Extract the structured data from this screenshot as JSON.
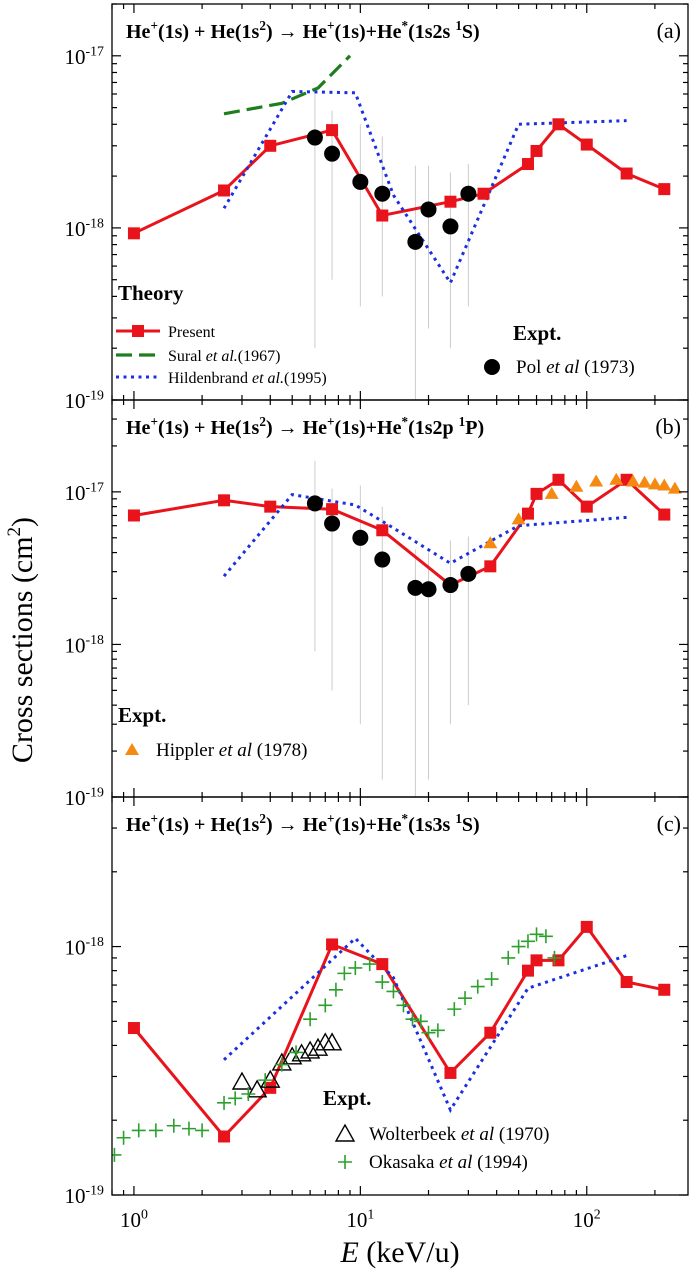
{
  "figure": {
    "ylabel": "Cross sections (cm",
    "ylabel_sup": "2",
    "ylabel_end": ")",
    "xlabel_italic": "E",
    "xlabel_rest": " (keV/u)"
  },
  "chart_data": [
    {
      "type": "line",
      "panel_label": "(a)",
      "title_parts": [
        "He",
        "+",
        "(1s) + He(1s",
        "2",
        ") → He",
        "+",
        "(1s)+He",
        "*",
        "(1s2s ",
        "1",
        "S)"
      ],
      "xscale": "log",
      "yscale": "log",
      "xlim": [
        0.8,
        280
      ],
      "ylim": [
        1e-19,
        2e-17
      ],
      "y_ticks": [
        {
          "v": 1e-19,
          "m": "10",
          "e": "-19"
        },
        {
          "v": 1e-18,
          "m": "10",
          "e": "-18"
        },
        {
          "v": 1e-17,
          "m": "10",
          "e": "-17"
        }
      ],
      "x_ticks": [],
      "theory_heading": "Theory",
      "expt_heading": "Expt.",
      "series": [
        {
          "name": "Present",
          "style": "line-square",
          "color": "#e8131b",
          "x": [
            1,
            2.5,
            4,
            7.5,
            12.5,
            25,
            35,
            55,
            60,
            75,
            100,
            150,
            220
          ],
          "y": [
            9.3e-19,
            1.65e-18,
            3e-18,
            3.7e-18,
            1.18e-18,
            1.42e-18,
            1.58e-18,
            2.35e-18,
            2.8e-18,
            4e-18,
            3.05e-18,
            2.07e-18,
            1.68e-18
          ]
        },
        {
          "name_parts": [
            "Sural ",
            "et al.",
            "(1967)"
          ],
          "style": "dashed",
          "color": "#1e7d1e",
          "x": [
            2.5,
            4.5,
            6.5,
            9
          ],
          "y": [
            4.6e-18,
            5.3e-18,
            6.5e-18,
            1e-17
          ]
        },
        {
          "name_parts": [
            "Hildenbrand ",
            "et al.",
            "(1995)"
          ],
          "style": "dotted",
          "color": "#1a2fe0",
          "x": [
            2.5,
            5,
            9.5,
            14,
            25,
            50,
            150
          ],
          "y": [
            1.3e-18,
            6.2e-18,
            6.1e-18,
            1.55e-18,
            4.8e-19,
            4e-18,
            4.2e-18
          ]
        },
        {
          "name_parts": [
            "Pol ",
            "et al",
            " (1973)"
          ],
          "style": "circle",
          "color": "#000000",
          "x": [
            6.3,
            7.5,
            10,
            12.5,
            17.5,
            20,
            25,
            30
          ],
          "y": [
            3.35e-18,
            2.7e-18,
            1.85e-18,
            1.58e-18,
            8.3e-19,
            1.28e-18,
            1.02e-18,
            1.58e-18
          ],
          "yerr_low": [
            2e-19,
            5e-19,
            3.5e-19,
            4e-19,
            1e-19,
            2.6e-19,
            2e-19,
            3.5e-19
          ],
          "yerr_high": [
            6e-18,
            4.8e-18,
            4e-18,
            3.4e-18,
            2.3e-18,
            2.3e-18,
            2.1e-18,
            2.35e-18
          ]
        }
      ]
    },
    {
      "type": "line",
      "panel_label": "(b)",
      "title_parts": [
        "He",
        "+",
        "(1s) + He(1s",
        "2",
        ") → He",
        "+",
        "(1s)+He",
        "*",
        "(1s2p ",
        "1",
        "P)"
      ],
      "xscale": "log",
      "yscale": "log",
      "xlim": [
        0.8,
        280
      ],
      "ylim": [
        1e-19,
        4e-17
      ],
      "y_ticks": [
        {
          "v": 1e-19,
          "m": "10",
          "e": "-19"
        },
        {
          "v": 1e-18,
          "m": "10",
          "e": "-18"
        },
        {
          "v": 1e-17,
          "m": "10",
          "e": "-17"
        }
      ],
      "x_ticks": [],
      "expt_heading": "Expt.",
      "series": [
        {
          "name": "Present",
          "style": "line-square",
          "color": "#e8131b",
          "x": [
            1,
            2.5,
            4,
            7.5,
            12.5,
            25,
            37.5,
            55,
            60,
            75,
            100,
            150,
            220
          ],
          "y": [
            7e-18,
            8.8e-18,
            8e-18,
            7.7e-18,
            5.6e-18,
            2.45e-18,
            3.25e-18,
            7.2e-18,
            9.7e-18,
            1.2e-17,
            8e-18,
            1.2e-17,
            7.1e-18
          ]
        },
        {
          "name": "Hildenbrand (1995)",
          "style": "dotted",
          "color": "#1a2fe0",
          "in_legend": false,
          "x": [
            2.5,
            5,
            9.5,
            14,
            25,
            50,
            150
          ],
          "y": [
            2.8e-18,
            9.6e-18,
            8.2e-18,
            5.8e-18,
            3.4e-18,
            6e-18,
            6.8e-18
          ]
        },
        {
          "name": "Pol (1973)",
          "style": "circle",
          "color": "#000000",
          "in_legend": false,
          "x": [
            6.3,
            7.5,
            10,
            12.5,
            17.5,
            20,
            25,
            30
          ],
          "y": [
            8.4e-18,
            6.2e-18,
            5e-18,
            3.6e-18,
            2.35e-18,
            2.3e-18,
            2.45e-18,
            2.9e-18
          ],
          "yerr_low": [
            9e-19,
            5e-19,
            3e-19,
            1.3e-19,
            1e-19,
            1.3e-19,
            3e-19,
            4e-19
          ],
          "yerr_high": [
            1.6e-17,
            1.05e-17,
            1.1e-17,
            8e-18,
            4.2e-18,
            4e-18,
            4.8e-18,
            5.1e-18
          ]
        },
        {
          "name_parts": [
            "Hippler ",
            "et al",
            " (1978)"
          ],
          "style": "triangle",
          "color": "#f58a13",
          "x": [
            37.5,
            50,
            70,
            90,
            110,
            135,
            160,
            180,
            200,
            220,
            245
          ],
          "y": [
            4.6e-18,
            6.6e-18,
            9.7e-18,
            1.08e-17,
            1.17e-17,
            1.2e-17,
            1.17e-17,
            1.15e-17,
            1.12e-17,
            1.1e-17,
            1.05e-17
          ]
        }
      ]
    },
    {
      "type": "line",
      "panel_label": "(c)",
      "title_parts": [
        "He",
        "+",
        "(1s) + He(1s",
        "2",
        ") → He",
        "+",
        "(1s)+He",
        "*",
        "(1s3s ",
        "1",
        "S)"
      ],
      "xscale": "log",
      "yscale": "log",
      "xlim": [
        0.8,
        280
      ],
      "ylim": [
        1e-19,
        4e-18
      ],
      "y_ticks": [
        {
          "v": 1e-19,
          "m": "10",
          "e": "-19"
        },
        {
          "v": 1e-18,
          "m": "10",
          "e": "-18"
        }
      ],
      "x_ticks": [
        {
          "v": 1,
          "m": "10",
          "e": "0"
        },
        {
          "v": 10,
          "m": "10",
          "e": "1"
        },
        {
          "v": 100,
          "m": "10",
          "e": "2"
        }
      ],
      "expt_heading": "Expt.",
      "series": [
        {
          "name": "Present",
          "style": "line-square",
          "color": "#e8131b",
          "x": [
            1,
            2.5,
            4,
            7.5,
            12.5,
            25,
            37.5,
            55,
            60,
            75,
            100,
            150,
            220
          ],
          "y": [
            4.7e-19,
            1.72e-19,
            2.7e-19,
            1.02e-18,
            8.5e-19,
            3.1e-19,
            4.5e-19,
            8e-19,
            8.8e-19,
            8.8e-19,
            1.2e-18,
            7.2e-19,
            6.7e-19
          ]
        },
        {
          "name": "Hildenbrand (1995)",
          "style": "dotted",
          "color": "#1a2fe0",
          "in_legend": false,
          "x": [
            2.5,
            9.5,
            14,
            25,
            55,
            150
          ],
          "y": [
            3.5e-19,
            1.08e-18,
            7.5e-19,
            2.2e-19,
            6.8e-19,
            9.2e-19
          ]
        },
        {
          "name_parts": [
            "Wolterbeek ",
            "et al",
            " (1970)"
          ],
          "style": "open-triangle",
          "color": "#000000",
          "x": [
            3,
            3.5,
            4,
            4.5,
            5,
            5.5,
            6,
            6.5,
            7,
            7.5
          ],
          "y": [
            2.85e-19,
            2.65e-19,
            2.9e-19,
            3.4e-19,
            3.6e-19,
            3.7e-19,
            3.8e-19,
            3.9e-19,
            4.1e-19,
            4.1e-19
          ]
        },
        {
          "name_parts": [
            "Okasaka ",
            "et al",
            " (1994)"
          ],
          "style": "plus",
          "color": "#2ca02c",
          "x": [
            0.82,
            0.9,
            1.05,
            1.25,
            1.5,
            1.75,
            2.0,
            2.5,
            2.8,
            3.2,
            3.8,
            4.5,
            5.2,
            6,
            7,
            7.8,
            8.5,
            9.5,
            11,
            12.5,
            14,
            15.5,
            17,
            18.5,
            20,
            22,
            26,
            29,
            33,
            38,
            45,
            50,
            55,
            60,
            66,
            72
          ],
          "y": [
            1.45e-19,
            1.7e-19,
            1.82e-19,
            1.82e-19,
            1.9e-19,
            1.85e-19,
            1.82e-19,
            2.35e-19,
            2.45e-19,
            2.55e-19,
            2.9e-19,
            3.35e-19,
            3.75e-19,
            5.1e-19,
            5.8e-19,
            6.7e-19,
            7.8e-19,
            8.2e-19,
            8.5e-19,
            7.2e-19,
            6.6e-19,
            5.8e-19,
            5.1e-19,
            5e-19,
            4.5e-19,
            4.6e-19,
            5.6e-19,
            6.2e-19,
            6.9e-19,
            7.4e-19,
            9e-19,
            1e-18,
            1.05e-18,
            1.12e-18,
            1.1e-18,
            9e-19
          ]
        }
      ]
    }
  ]
}
